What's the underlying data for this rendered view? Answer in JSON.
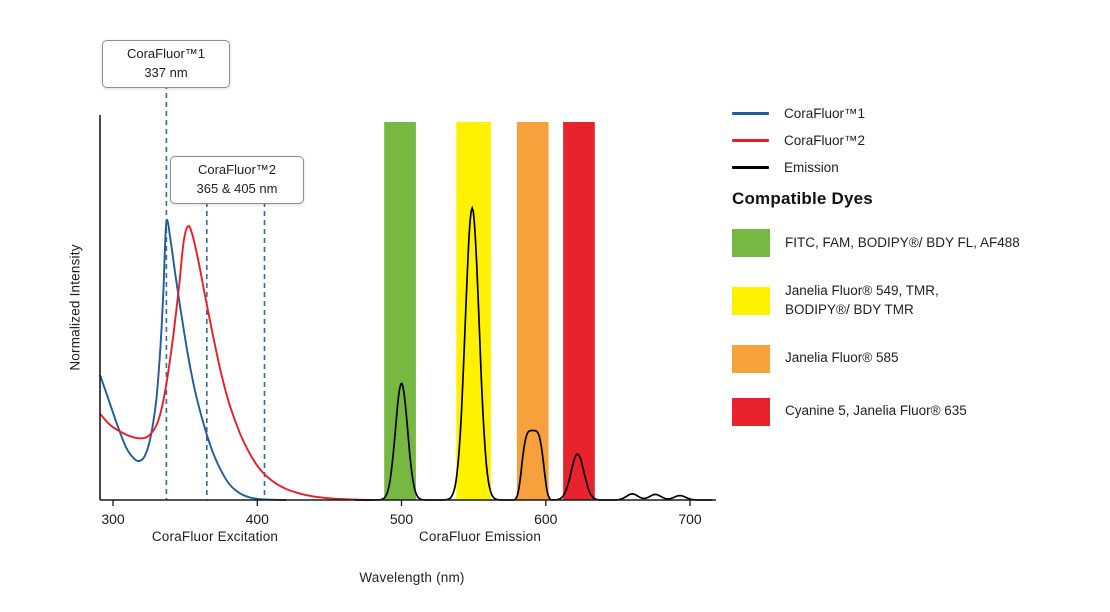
{
  "legend": {
    "heading": "Compatible Dyes"
  },
  "chart_data": {
    "type": "line",
    "xlabel": "Wavelength (nm)",
    "ylabel": "Normalized Intensity",
    "x_section_labels": [
      "CoraFluor Excitation",
      "CoraFluor Emission"
    ],
    "x_ticks_nm": [
      300,
      400,
      500,
      600,
      700
    ],
    "xlim_nm": [
      291,
      719
    ],
    "ylim": [
      0,
      1.1
    ],
    "grid": false,
    "legend_position": "right",
    "annotations": [
      {
        "label": "CoraFluor™1",
        "sublabel": "337 nm",
        "lines_nm": [
          337
        ]
      },
      {
        "label": "CoraFluor™2",
        "sublabel": "365 & 405 nm",
        "lines_nm": [
          365,
          405
        ]
      }
    ],
    "series": [
      {
        "name": "CoraFluor™1",
        "type": "excitation",
        "color": "#1F5C99",
        "points": [
          [
            291,
            0.45
          ],
          [
            297,
            0.36
          ],
          [
            303,
            0.27
          ],
          [
            309,
            0.19
          ],
          [
            314,
            0.152
          ],
          [
            318,
            0.14
          ],
          [
            322,
            0.158
          ],
          [
            326,
            0.225
          ],
          [
            330,
            0.36
          ],
          [
            333,
            0.56
          ],
          [
            335,
            0.76
          ],
          [
            337,
            1.0
          ],
          [
            340,
            0.93
          ],
          [
            343,
            0.82
          ],
          [
            347,
            0.68
          ],
          [
            352,
            0.52
          ],
          [
            357,
            0.39
          ],
          [
            363,
            0.27
          ],
          [
            369,
            0.175
          ],
          [
            375,
            0.105
          ],
          [
            381,
            0.055
          ],
          [
            388,
            0.024
          ],
          [
            395,
            0.009
          ],
          [
            402,
            0.003
          ],
          [
            410,
            0.001
          ],
          [
            420,
            0
          ]
        ]
      },
      {
        "name": "CoraFluor™2",
        "type": "excitation",
        "color": "#ED1C24",
        "points": [
          [
            291,
            0.31
          ],
          [
            298,
            0.27
          ],
          [
            305,
            0.246
          ],
          [
            312,
            0.229
          ],
          [
            318,
            0.222
          ],
          [
            324,
            0.228
          ],
          [
            330,
            0.268
          ],
          [
            334,
            0.335
          ],
          [
            338,
            0.45
          ],
          [
            342,
            0.6
          ],
          [
            346,
            0.78
          ],
          [
            349,
            0.93
          ],
          [
            352,
            0.985
          ],
          [
            355,
            0.955
          ],
          [
            359,
            0.865
          ],
          [
            364,
            0.73
          ],
          [
            369,
            0.6
          ],
          [
            375,
            0.455
          ],
          [
            381,
            0.34
          ],
          [
            388,
            0.24
          ],
          [
            395,
            0.165
          ],
          [
            402,
            0.11
          ],
          [
            410,
            0.07
          ],
          [
            419,
            0.042
          ],
          [
            429,
            0.024
          ],
          [
            440,
            0.012
          ],
          [
            452,
            0.005
          ],
          [
            465,
            0.002
          ],
          [
            480,
            0
          ]
        ]
      },
      {
        "name": "Emission",
        "type": "emission",
        "color": "#000000",
        "peaks": [
          {
            "center_nm": 500,
            "height": 0.42,
            "sigma_nm": 4.2,
            "power": 2
          },
          {
            "center_nm": 549,
            "height": 1.05,
            "sigma_nm": 4.8,
            "power": 2
          },
          {
            "center_nm": 591,
            "height": 0.25,
            "sigma_nm": 7.0,
            "power": 4
          },
          {
            "center_nm": 622,
            "height": 0.165,
            "sigma_nm": 4.5,
            "power": 2
          },
          {
            "center_nm": 660,
            "height": 0.022,
            "sigma_nm": 4.0,
            "power": 2
          },
          {
            "center_nm": 676,
            "height": 0.02,
            "sigma_nm": 4.0,
            "power": 2
          },
          {
            "center_nm": 693,
            "height": 0.016,
            "sigma_nm": 4.0,
            "power": 2
          }
        ]
      }
    ],
    "dye_bands": [
      {
        "label": "FITC, FAM, BODIPY®/ BDY FL, AF488",
        "color": "#77B843",
        "from_nm": 488,
        "to_nm": 510
      },
      {
        "label": "Janelia Fluor® 549, TMR,\nBODIPY®/ BDY TMR",
        "color": "#FFF200",
        "from_nm": 538,
        "to_nm": 562
      },
      {
        "label": "Janelia Fluor® 585",
        "color": "#F6A13B",
        "from_nm": 580,
        "to_nm": 602
      },
      {
        "label": "Cyanine 5, Janelia Fluor® 635",
        "color": "#E8232E",
        "from_nm": 612,
        "to_nm": 634
      }
    ]
  }
}
